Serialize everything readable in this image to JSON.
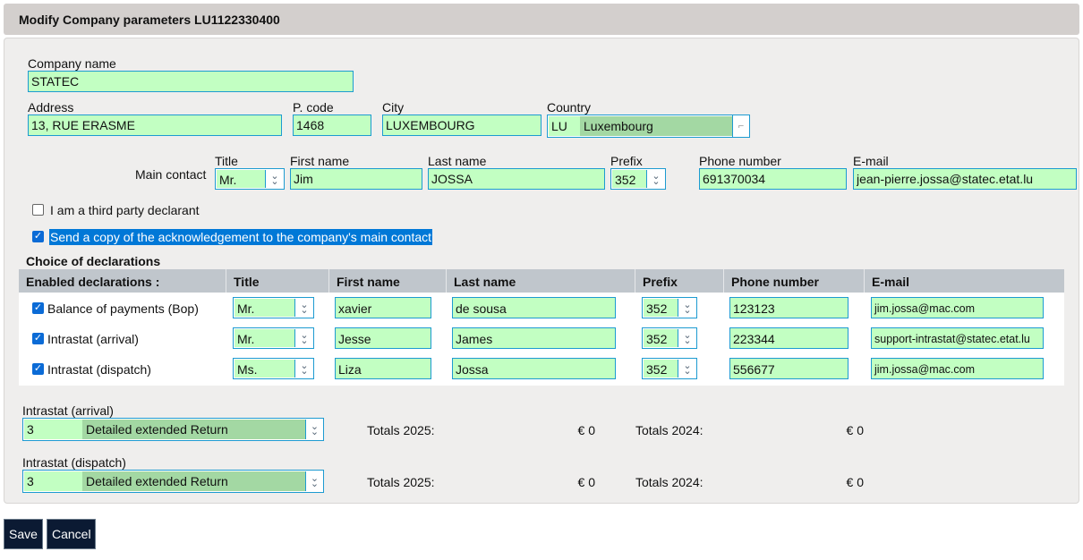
{
  "header": {
    "title": "Modify Company parameters LU1122330400"
  },
  "company": {
    "name_label": "Company name",
    "name": "STATEC",
    "address_label": "Address",
    "address": "13, RUE ERASME",
    "pcode_label": "P. code",
    "pcode": "1468",
    "city_label": "City",
    "city": "LUXEMBOURG",
    "country_label": "Country",
    "country_code": "LU",
    "country_name": "Luxembourg"
  },
  "contact": {
    "label": "Main contact",
    "title_label": "Title",
    "title": "Mr.",
    "first_label": "First name",
    "first": "Jim",
    "last_label": "Last name",
    "last": "JOSSA",
    "prefix_label": "Prefix",
    "prefix": "352",
    "phone_label": "Phone number",
    "phone": "691370034",
    "email_label": "E-mail",
    "email": "jean-pierre.jossa@statec.etat.lu"
  },
  "options": {
    "third_party": {
      "label": "I am a third party declarant",
      "checked": false
    },
    "send_copy": {
      "label": "Send a copy of the acknowledgement to the company's main contact",
      "checked": true
    }
  },
  "declarations": {
    "title": "Choice of declarations",
    "headers": [
      "Enabled declarations :",
      "Title",
      "First name",
      "Last name",
      "Prefix",
      "Phone number",
      "E-mail"
    ],
    "rows": [
      {
        "name": "Balance of payments (Bop)",
        "checked": true,
        "title": "Mr.",
        "first": "xavier",
        "last": "de sousa",
        "prefix": "352",
        "phone": "123123",
        "email": "jim.jossa@mac.com"
      },
      {
        "name": "Intrastat (arrival)",
        "checked": true,
        "title": "Mr.",
        "first": "Jesse",
        "last": "James",
        "prefix": "352",
        "phone": "223344",
        "email": "support-intrastat@statec.etat.lu"
      },
      {
        "name": "Intrastat (dispatch)",
        "checked": true,
        "title": "Ms.",
        "first": "Liza",
        "last": "Jossa",
        "prefix": "352",
        "phone": "556677",
        "email": "jim.jossa@mac.com"
      }
    ]
  },
  "intrastat": [
    {
      "label": "Intrastat (arrival)",
      "code": "3",
      "type": "Detailed extended Return",
      "totals_a_label": "Totals 2025:",
      "totals_a": "€ 0",
      "totals_b_label": "Totals 2024:",
      "totals_b": "€ 0"
    },
    {
      "label": "Intrastat (dispatch)",
      "code": "3",
      "type": "Detailed extended Return",
      "totals_a_label": "Totals 2025:",
      "totals_a": "€ 0",
      "totals_b_label": "Totals 2024:",
      "totals_b": "€ 0"
    }
  ],
  "buttons": {
    "save": "Save",
    "cancel": "Cancel"
  },
  "colors": {
    "field_bg": "#c2ffc2",
    "field_border": "#1d9bd1",
    "button_bg": "#0b1a33",
    "selection": "#0078d7"
  }
}
